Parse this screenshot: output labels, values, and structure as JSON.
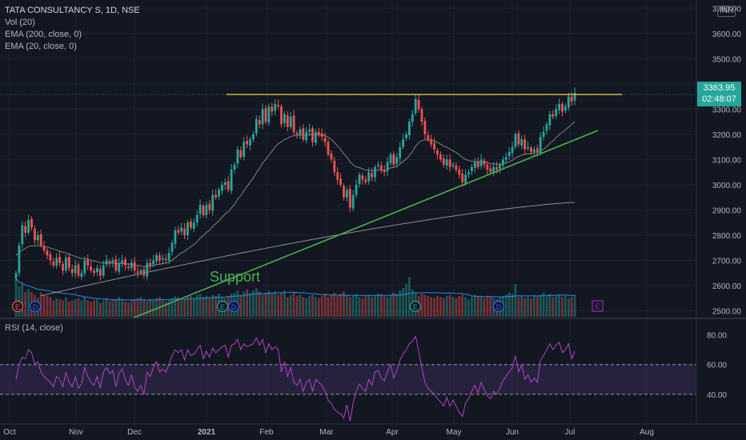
{
  "header": {
    "symbol": "TATA CONSULTANCY S, 1D, NSE",
    "indicators": [
      "Vol (20)",
      "EMA (200, close, 0)",
      "EMA (20, close, 0)"
    ],
    "currency": "INR"
  },
  "last_price": {
    "value": "3363.95",
    "countdown": "02:48:07"
  },
  "rsi_label": "RSI (14, close)",
  "annotation": "Support",
  "colors": {
    "up": "#26a69a",
    "down": "#ef5350",
    "bg": "#131722",
    "support": "#4caf50",
    "resistance": "#e8d44d",
    "rsi": "#9c27b0",
    "ema200": "#c0c0c0"
  },
  "chart_data": [
    {
      "type": "candlestick",
      "y_axis": {
        "range": [
          2470,
          3720
        ],
        "ticks": [
          "3700.00",
          "3600.00",
          "3500.00",
          "3400.00",
          "3300.00",
          "3200.00",
          "3100.00",
          "3000.00",
          "2900.00",
          "2800.00",
          "2700.00",
          "2600.00",
          "2500.00"
        ]
      },
      "x_axis": {
        "ticks": [
          "Oct",
          "Nov",
          "Dec",
          "2021",
          "Feb",
          "Mar",
          "Apr",
          "May",
          "Jun",
          "Jul",
          "Aug"
        ]
      },
      "close": [
        2650,
        2760,
        2840,
        2810,
        2860,
        2830,
        2780,
        2800,
        2760,
        2740,
        2720,
        2700,
        2680,
        2710,
        2690,
        2660,
        2710,
        2670,
        2650,
        2680,
        2640,
        2650,
        2700,
        2680,
        2660,
        2650,
        2670,
        2640,
        2680,
        2700,
        2690,
        2700,
        2660,
        2690,
        2700,
        2680,
        2670,
        2690,
        2660,
        2650,
        2660,
        2640,
        2690,
        2680,
        2700,
        2720,
        2700,
        2710,
        2700,
        2730,
        2770,
        2820,
        2810,
        2830,
        2800,
        2850,
        2830,
        2850,
        2880,
        2920,
        2880,
        2920,
        2900,
        2960,
        2950,
        2980,
        3000,
        3010,
        2980,
        3060,
        3080,
        3140,
        3110,
        3170,
        3160,
        3180,
        3200,
        3260,
        3240,
        3300,
        3250,
        3310,
        3290,
        3320,
        3310,
        3240,
        3280,
        3230,
        3270,
        3210,
        3200,
        3220,
        3180,
        3210,
        3220,
        3170,
        3210,
        3200,
        3190,
        3170,
        3120,
        3100,
        3050,
        3020,
        3000,
        2950,
        2980,
        2910,
        2960,
        3000,
        3040,
        3020,
        3010,
        3050,
        3030,
        3070,
        3080,
        3060,
        3050,
        3090,
        3120,
        3080,
        3110,
        3150,
        3180,
        3200,
        3250,
        3280,
        3340,
        3300,
        3250,
        3200,
        3180,
        3160,
        3140,
        3120,
        3100,
        3080,
        3100,
        3070,
        3080,
        3060,
        3040,
        3010,
        3040,
        3050,
        3070,
        3090,
        3070,
        3100,
        3080,
        3060,
        3050,
        3070,
        3060,
        3080,
        3100,
        3110,
        3130,
        3150,
        3200,
        3160,
        3180,
        3140,
        3150,
        3130,
        3140,
        3130,
        3190,
        3210,
        3240,
        3280,
        3270,
        3300,
        3320,
        3290,
        3310,
        3350,
        3330,
        3364
      ],
      "ema_20": [
        2720,
        2730,
        2740,
        2748,
        2755,
        2758,
        2758,
        2759,
        2758,
        2756,
        2753,
        2749,
        2745,
        2741,
        2737,
        2732,
        2730,
        2725,
        2720,
        2716,
        2711,
        2708,
        2707,
        2705,
        2701,
        2698,
        2695,
        2691,
        2690,
        2690,
        2689,
        2690,
        2687,
        2687,
        2688,
        2687,
        2685,
        2686,
        2683,
        2680,
        2679,
        2675,
        2677,
        2677,
        2679,
        2683,
        2685,
        2687,
        2689,
        2693,
        2701,
        2711,
        2720,
        2730,
        2736,
        2746,
        2754,
        2763,
        2774,
        2788,
        2798,
        2811,
        2820,
        2834,
        2845,
        2857,
        2871,
        2884,
        2893,
        2908,
        2923,
        2943,
        2957,
        2977,
        2993,
        3010,
        3027,
        3048,
        3065,
        3086,
        3100,
        3118,
        3133,
        3150,
        3163,
        3170,
        3180,
        3184,
        3192,
        3194,
        3195,
        3198,
        3196,
        3197,
        3200,
        3197,
        3198,
        3198,
        3197,
        3195,
        3188,
        3180,
        3168,
        3154,
        3140,
        3122,
        3109,
        3091,
        3079,
        3071,
        3068,
        3063,
        3058,
        3058,
        3055,
        3056,
        3058,
        3058,
        3057,
        3061,
        3067,
        3069,
        3074,
        3082,
        3092,
        3102,
        3116,
        3132,
        3153,
        3167,
        3175,
        3178,
        3178,
        3176,
        3173,
        3168,
        3161,
        3153,
        3149,
        3141,
        3135,
        3128,
        3119,
        3108,
        3101,
        3096,
        3093,
        3093,
        3091,
        3092,
        3091,
        3088,
        3084,
        3083,
        3081,
        3081,
        3083,
        3086,
        3091,
        3097,
        3107,
        3112,
        3118,
        3120,
        3123,
        3124,
        3126,
        3127,
        3133,
        3141,
        3151,
        3164,
        3174,
        3186,
        3199,
        3208,
        3217,
        3229,
        3238,
        3250
      ],
      "ema_200_start_end": [
        2560,
        2930
      ],
      "resistance_level": 3358,
      "support_line": {
        "from_price": 2470,
        "to_price": 3215
      },
      "volume": [
        70,
        55,
        60,
        45,
        50,
        45,
        40,
        35,
        45,
        40,
        38,
        36,
        30,
        34,
        32,
        30,
        35,
        28,
        30,
        32,
        34,
        30,
        36,
        30,
        28,
        30,
        32,
        26,
        30,
        34,
        28,
        30,
        32,
        36,
        30,
        28,
        26,
        30,
        32,
        34,
        36,
        30,
        28,
        32,
        30,
        34,
        36,
        30,
        28,
        32,
        34,
        38,
        36,
        30,
        32,
        36,
        38,
        34,
        40,
        42,
        36,
        38,
        34,
        40,
        38,
        42,
        36,
        34,
        38,
        42,
        44,
        48,
        40,
        46,
        50,
        44,
        48,
        52,
        46,
        40,
        44,
        48,
        42,
        46,
        40,
        44,
        48,
        36,
        40,
        44,
        38,
        40,
        36,
        34,
        38,
        40,
        36,
        34,
        38,
        42,
        36,
        40,
        44,
        38,
        42,
        46,
        40,
        36,
        38,
        42,
        36,
        34,
        38,
        40,
        36,
        38,
        42,
        40,
        38,
        36,
        40,
        44,
        42,
        48,
        52,
        60,
        72,
        50,
        44,
        38,
        42,
        40,
        38,
        36,
        34,
        38,
        36,
        34,
        38,
        40,
        36,
        34,
        38,
        40,
        36,
        32,
        36,
        40,
        38,
        36,
        34,
        38,
        36,
        34,
        32,
        36,
        38,
        40,
        44,
        42,
        60,
        36,
        38,
        34,
        36,
        34,
        38,
        36,
        40,
        44,
        38,
        42,
        36,
        38,
        40,
        36,
        38,
        34,
        36,
        40
      ],
      "rsi": [
        50,
        60,
        65,
        64,
        70,
        68,
        60,
        62,
        55,
        52,
        50,
        48,
        45,
        52,
        50,
        45,
        55,
        48,
        45,
        52,
        44,
        47,
        58,
        52,
        48,
        46,
        52,
        44,
        55,
        58,
        54,
        56,
        45,
        54,
        57,
        50,
        46,
        53,
        45,
        42,
        46,
        40,
        55,
        52,
        58,
        62,
        55,
        57,
        55,
        60,
        66,
        70,
        68,
        70,
        63,
        70,
        66,
        67,
        70,
        73,
        64,
        69,
        65,
        71,
        68,
        70,
        72,
        73,
        65,
        73,
        74,
        77,
        70,
        74,
        72,
        73,
        74,
        78,
        73,
        77,
        68,
        74,
        70,
        72,
        70,
        55,
        62,
        52,
        58,
        48,
        46,
        50,
        42,
        48,
        50,
        42,
        50,
        48,
        46,
        42,
        36,
        34,
        30,
        28,
        27,
        24,
        33,
        22,
        34,
        42,
        47,
        44,
        42,
        50,
        46,
        55,
        56,
        51,
        49,
        55,
        60,
        51,
        56,
        63,
        67,
        70,
        74,
        76,
        79,
        69,
        58,
        48,
        44,
        42,
        40,
        37,
        35,
        32,
        38,
        32,
        36,
        32,
        28,
        25,
        34,
        37,
        42,
        46,
        41,
        48,
        43,
        39,
        37,
        42,
        40,
        44,
        49,
        52,
        55,
        58,
        66,
        55,
        60,
        50,
        53,
        48,
        51,
        48,
        63,
        66,
        70,
        74,
        70,
        73,
        75,
        68,
        70,
        74,
        64,
        69
      ]
    }
  ]
}
